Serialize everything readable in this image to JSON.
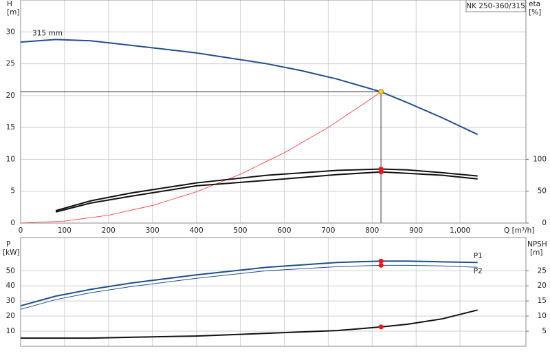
{
  "chart_data": [
    {
      "type": "line",
      "title": "NK 250-360/315",
      "y_label": "H",
      "y_unit": "[m]",
      "y2_label": "eta",
      "y2_unit": "[%]",
      "x_label": "Q [m³/h]",
      "xlim": [
        0,
        1150
      ],
      "xticks": [
        0,
        100,
        200,
        300,
        400,
        500,
        600,
        700,
        800,
        900,
        {
          "value": 1000,
          "label": "1,000"
        }
      ],
      "ylim": [
        0,
        35
      ],
      "yticks": [
        0,
        5,
        10,
        15,
        20,
        25,
        30
      ],
      "y2lim": [
        0,
        350
      ],
      "y2ticks": [
        0,
        50,
        100
      ],
      "grid": true,
      "duty_point": {
        "x": 820,
        "y": 20.6
      },
      "series": [
        {
          "name": "315 mm",
          "color": "#1f4f8f",
          "width": 2,
          "duty_marker": "#ffd21f",
          "x": [
            0,
            80,
            160,
            250,
            400,
            560,
            640,
            720,
            820,
            880,
            960,
            1040
          ],
          "values": [
            28.4,
            28.8,
            28.6,
            27.9,
            26.7,
            25.0,
            23.9,
            22.6,
            20.6,
            18.9,
            16.5,
            13.9
          ]
        },
        {
          "color": "#ff2a2a",
          "width": 0.8,
          "x": [
            0,
            100,
            200,
            300,
            400,
            500,
            600,
            700,
            800,
            820
          ],
          "values": [
            0,
            0.31,
            1.23,
            2.76,
            4.9,
            7.66,
            11.03,
            15.01,
            19.61,
            20.6
          ]
        },
        {
          "color": "#111111",
          "width": 2,
          "axis": "y2",
          "duty_marker": "#ff1010",
          "x": [
            80,
            160,
            250,
            400,
            560,
            720,
            820,
            880,
            960,
            1040
          ],
          "values": [
            19.5,
            35,
            47,
            63,
            75,
            82.6,
            84.8,
            83.5,
            79,
            73.9
          ]
        },
        {
          "color": "#111111",
          "width": 2,
          "axis": "y2",
          "duty_marker": "#ff1010",
          "x": [
            80,
            160,
            250,
            400,
            560,
            720,
            820,
            880,
            960,
            1040
          ],
          "values": [
            17.4,
            31.5,
            42,
            58.5,
            67,
            76,
            80.2,
            78,
            75,
            69.3
          ]
        }
      ]
    },
    {
      "type": "line",
      "y_label": "P",
      "y_unit": "[kW]",
      "y2_label": "NPSH",
      "y2_unit": "[m]",
      "xlim": [
        0,
        1150
      ],
      "sharex": true,
      "ylim": [
        0,
        72
      ],
      "yticks": [
        10,
        20,
        30,
        40,
        50
      ],
      "y2lim": [
        0,
        36
      ],
      "y2ticks": [
        5,
        10,
        15,
        20,
        25
      ],
      "grid": true,
      "duty_point": {
        "x": 820
      },
      "series": [
        {
          "name": "P1",
          "color": "#1f4f8f",
          "width": 2,
          "duty_marker": "#ff1010",
          "x": [
            0,
            80,
            160,
            250,
            400,
            560,
            720,
            820,
            880,
            960,
            1040
          ],
          "values": [
            26.8,
            33.2,
            37.7,
            41.8,
            47.3,
            52.3,
            55.5,
            56.4,
            56.4,
            55.9,
            55.5
          ]
        },
        {
          "name": "P2",
          "color": "#1f4f8f",
          "width": 1,
          "duty_marker": "#ff1010",
          "x": [
            0,
            80,
            160,
            250,
            400,
            560,
            720,
            820,
            880,
            960,
            1040
          ],
          "values": [
            24.5,
            30.9,
            35.5,
            39.5,
            45,
            50,
            52.7,
            53.6,
            53.6,
            53.2,
            52.3
          ]
        },
        {
          "color": "#111111",
          "width": 2,
          "axis": "y2",
          "duty_marker": "#ff1010",
          "x": [
            0,
            80,
            160,
            250,
            400,
            560,
            720,
            820,
            880,
            960,
            1040
          ],
          "values": [
            2.7,
            2.7,
            2.7,
            3.0,
            3.4,
            4.3,
            5.2,
            6.4,
            7.3,
            9.1,
            12.0
          ]
        }
      ]
    }
  ]
}
